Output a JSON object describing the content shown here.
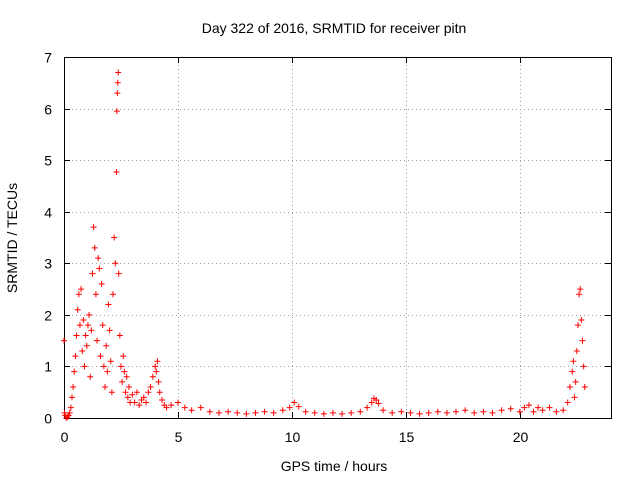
{
  "chart_data": {
    "type": "scatter",
    "title": "Day 322 of 2016, SRMTID for receiver pitn",
    "xlabel": "GPS time / hours",
    "ylabel": "SRMTID / TECUs",
    "xlim": [
      0,
      24
    ],
    "ylim": [
      0,
      7
    ],
    "xticks": [
      0,
      5,
      10,
      15,
      20
    ],
    "yticks": [
      0,
      1,
      2,
      3,
      4,
      5,
      6,
      7
    ],
    "grid": true,
    "marker": "plus",
    "marker_color": "#ff0000",
    "series": [
      {
        "name": "SRMTID",
        "x": [
          0.0,
          0.02,
          0.05,
          0.1,
          0.15,
          0.2,
          0.25,
          0.3,
          0.35,
          0.4,
          0.45,
          0.5,
          0.55,
          0.6,
          0.65,
          0.7,
          0.75,
          0.8,
          0.85,
          0.9,
          0.95,
          1.0,
          1.05,
          1.1,
          1.15,
          1.2,
          1.25,
          1.3,
          1.35,
          1.4,
          1.45,
          1.5,
          1.55,
          1.6,
          1.65,
          1.7,
          1.75,
          1.8,
          1.85,
          1.9,
          1.95,
          2.0,
          2.05,
          2.1,
          2.15,
          2.2,
          2.25,
          2.3,
          2.32,
          2.34,
          2.36,
          2.38,
          2.4,
          2.45,
          2.5,
          2.55,
          2.6,
          2.65,
          2.7,
          2.75,
          2.8,
          2.85,
          2.9,
          3.0,
          3.1,
          3.2,
          3.3,
          3.4,
          3.5,
          3.6,
          3.7,
          3.8,
          3.9,
          4.0,
          4.05,
          4.1,
          4.15,
          4.2,
          4.3,
          4.4,
          4.5,
          4.7,
          5.0,
          5.3,
          5.6,
          6.0,
          6.4,
          6.8,
          7.2,
          7.6,
          8.0,
          8.4,
          8.8,
          9.2,
          9.6,
          9.9,
          10.1,
          10.3,
          10.6,
          11.0,
          11.4,
          11.8,
          12.2,
          12.6,
          13.0,
          13.3,
          13.5,
          13.6,
          13.7,
          13.8,
          14.0,
          14.4,
          14.8,
          15.2,
          15.6,
          16.0,
          16.4,
          16.8,
          17.2,
          17.6,
          18.0,
          18.4,
          18.8,
          19.2,
          19.6,
          20.0,
          20.2,
          20.4,
          20.6,
          20.8,
          21.0,
          21.3,
          21.6,
          21.9,
          22.1,
          22.2,
          22.3,
          22.35,
          22.4,
          22.45,
          22.5,
          22.55,
          22.6,
          22.65,
          22.7,
          22.75,
          22.8,
          22.85
        ],
        "y": [
          1.5,
          0.1,
          0.05,
          0.0,
          0.02,
          0.05,
          0.1,
          0.2,
          0.4,
          0.6,
          0.9,
          1.2,
          1.6,
          2.1,
          2.4,
          1.8,
          2.5,
          1.3,
          1.9,
          1.0,
          1.6,
          1.4,
          1.8,
          2.0,
          0.8,
          1.7,
          2.8,
          3.7,
          3.3,
          2.4,
          1.5,
          3.1,
          2.9,
          1.2,
          2.6,
          1.8,
          1.0,
          0.6,
          1.4,
          0.9,
          2.2,
          1.7,
          1.1,
          0.5,
          2.4,
          3.5,
          3.0,
          4.77,
          5.95,
          6.3,
          6.5,
          6.7,
          2.8,
          1.6,
          1.0,
          0.7,
          1.2,
          0.9,
          0.5,
          0.8,
          0.4,
          0.6,
          0.3,
          0.45,
          0.3,
          0.5,
          0.25,
          0.35,
          0.4,
          0.3,
          0.5,
          0.6,
          0.8,
          1.0,
          0.9,
          1.1,
          0.7,
          0.5,
          0.35,
          0.25,
          0.2,
          0.25,
          0.3,
          0.2,
          0.15,
          0.2,
          0.12,
          0.1,
          0.12,
          0.1,
          0.08,
          0.1,
          0.12,
          0.1,
          0.15,
          0.2,
          0.3,
          0.22,
          0.12,
          0.1,
          0.08,
          0.1,
          0.08,
          0.1,
          0.12,
          0.2,
          0.3,
          0.38,
          0.35,
          0.28,
          0.15,
          0.1,
          0.12,
          0.1,
          0.08,
          0.1,
          0.12,
          0.1,
          0.12,
          0.15,
          0.1,
          0.12,
          0.1,
          0.15,
          0.18,
          0.12,
          0.2,
          0.25,
          0.12,
          0.2,
          0.15,
          0.2,
          0.12,
          0.15,
          0.3,
          0.6,
          0.9,
          1.1,
          0.4,
          0.7,
          1.3,
          1.8,
          2.4,
          2.5,
          1.9,
          1.5,
          1.0,
          0.6
        ]
      }
    ]
  }
}
